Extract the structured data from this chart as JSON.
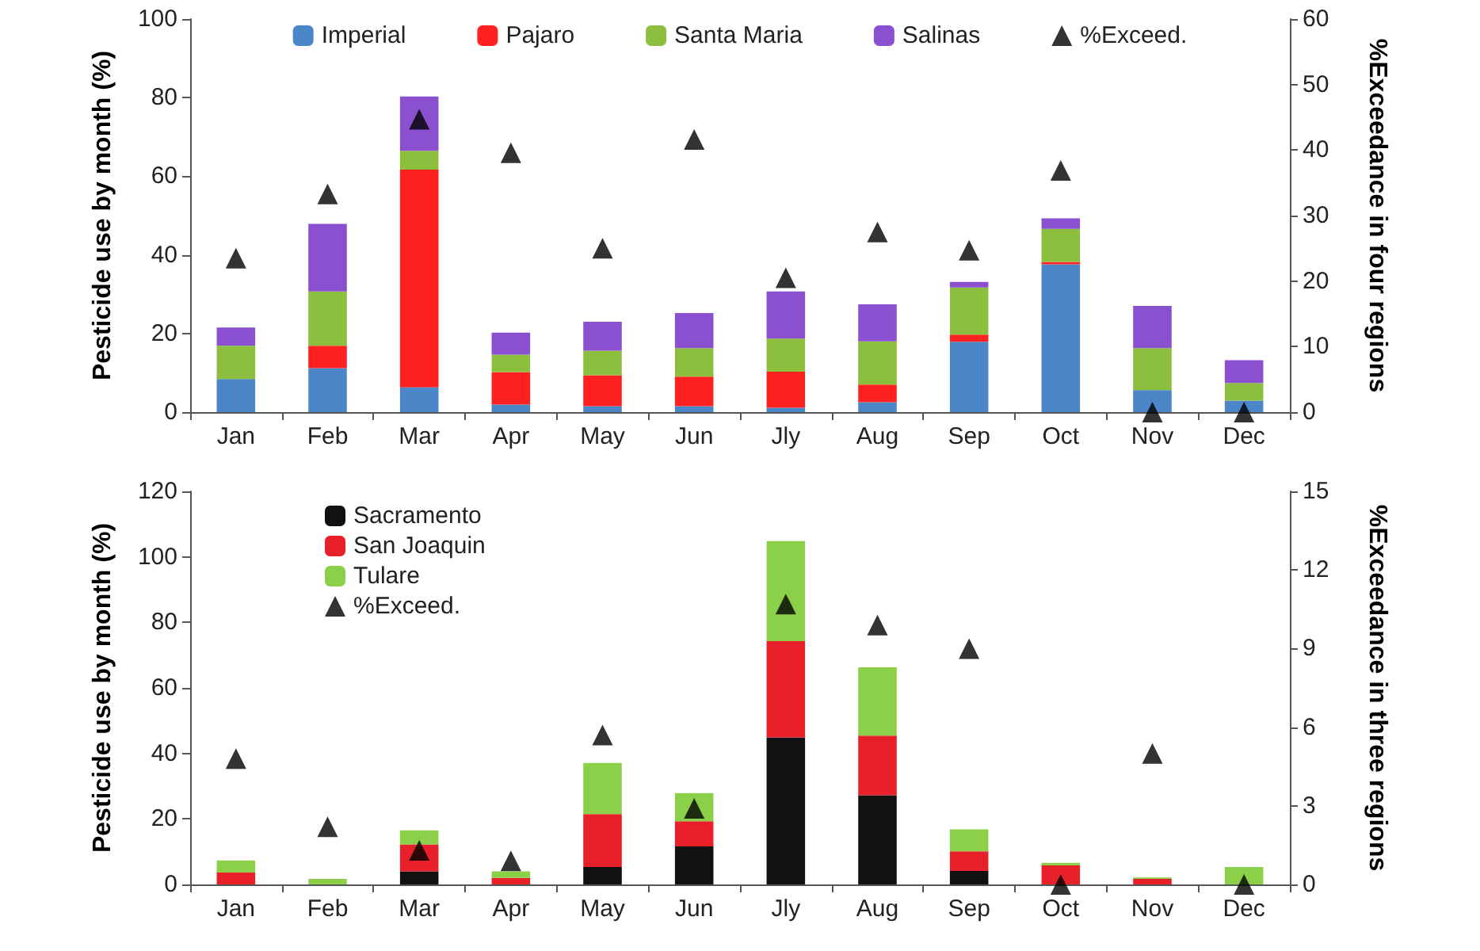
{
  "chart_data": [
    {
      "type": "bar",
      "stacked": true,
      "ylabel": "Pesticide use by month (%)",
      "y2label": "%Exceedance in four regions",
      "categories": [
        "Jan",
        "Feb",
        "Mar",
        "Apr",
        "May",
        "Jun",
        "Jly",
        "Aug",
        "Sep",
        "Oct",
        "Nov",
        "Dec"
      ],
      "ylim": [
        0,
        100
      ],
      "yticks": [
        0,
        20,
        40,
        60,
        80,
        100
      ],
      "y2lim": [
        0,
        60
      ],
      "y2ticks": [
        0,
        10,
        20,
        30,
        40,
        50,
        60
      ],
      "grid": false,
      "legend": "top",
      "marker": "triangle",
      "series": [
        {
          "name": "Imperial",
          "color": "#4a86c8",
          "values": [
            8.4,
            11.2,
            6.3,
            1.9,
            1.5,
            1.5,
            1.1,
            2.5,
            17.9,
            37.6,
            5.6,
            2.9
          ]
        },
        {
          "name": "Pajaro",
          "color": "#ff2020",
          "values": [
            0,
            5.7,
            55.4,
            8.3,
            7.9,
            7.5,
            9.2,
            4.5,
            1.8,
            0.6,
            0,
            0
          ]
        },
        {
          "name": "Santa Maria",
          "color": "#8dbf3f",
          "values": [
            8.5,
            13.8,
            4.8,
            4.4,
            6.2,
            7.3,
            8.4,
            11,
            12,
            8.4,
            10.7,
            4.5
          ]
        },
        {
          "name": "Salinas",
          "color": "#8a50d0",
          "values": [
            4.6,
            17.2,
            13.8,
            5.6,
            7.4,
            8.9,
            12,
            9.4,
            1.4,
            2.7,
            10.7,
            5.8
          ]
        },
        {
          "name": "%Exceed.",
          "type": "scatter",
          "axis": "y2",
          "color": "#000000",
          "values": [
            23.5,
            33.3,
            44.7,
            39.6,
            25.0,
            41.6,
            20.5,
            27.5,
            24.7,
            36.9,
            0,
            0
          ]
        }
      ]
    },
    {
      "type": "bar",
      "stacked": true,
      "ylabel": "Pesticide use by month (%)",
      "y2label": "%Exceedance in three regions",
      "categories": [
        "Jan",
        "Feb",
        "Mar",
        "Apr",
        "May",
        "Jun",
        "Jly",
        "Aug",
        "Sep",
        "Oct",
        "Nov",
        "Dec"
      ],
      "ylim": [
        0,
        120
      ],
      "yticks": [
        0,
        20,
        40,
        60,
        80,
        100,
        120
      ],
      "y2lim": [
        0,
        15
      ],
      "y2ticks": [
        0,
        3,
        6,
        9,
        12,
        15
      ],
      "grid": false,
      "legend": "top left",
      "marker": "triangle",
      "series": [
        {
          "name": "Sacramento",
          "color": "#111111",
          "values": [
            0,
            0,
            4.0,
            0,
            5.3,
            11.6,
            44.9,
            27.2,
            4.1,
            0,
            0,
            0
          ]
        },
        {
          "name": "San Joaquin",
          "color": "#e8202a",
          "values": [
            3.6,
            0,
            8.2,
            2.0,
            16.2,
            7.7,
            29.4,
            18.2,
            6.0,
            5.8,
            1.7,
            0
          ]
        },
        {
          "name": "Tulare",
          "color": "#8cd04a",
          "values": [
            3.7,
            1.7,
            4.3,
            2.0,
            15.6,
            8.6,
            30.5,
            20.9,
            6.7,
            0.8,
            0.4,
            5.3
          ]
        },
        {
          "name": "%Exceed.",
          "type": "scatter",
          "axis": "y2",
          "color": "#000000",
          "values": [
            4.8,
            2.2,
            1.3,
            0.9,
            5.7,
            2.9,
            10.7,
            9.9,
            9.0,
            0,
            5.0,
            0
          ]
        }
      ]
    }
  ]
}
